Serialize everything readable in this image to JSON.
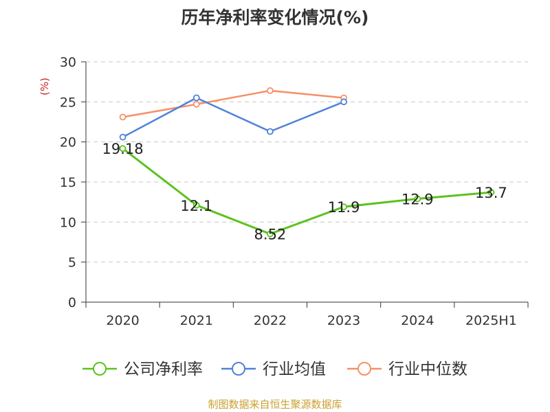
{
  "chart_data": {
    "type": "line",
    "title": "历年净利率变化情况(%)",
    "ylabel": "(%)",
    "categories": [
      "2020",
      "2021",
      "2022",
      "2023",
      "2024",
      "2025H1"
    ],
    "ylim": [
      0,
      30
    ],
    "yticks": [
      0,
      5,
      10,
      15,
      20,
      25,
      30
    ],
    "grid": true,
    "legend_position": "bottom",
    "series": [
      {
        "name": "公司净利率",
        "color": "#5cc21e",
        "values": [
          19.18,
          12.1,
          8.52,
          11.9,
          12.9,
          13.7
        ],
        "labels": [
          "19.18",
          "12.1",
          "8.52",
          "11.9",
          "12.9",
          "13.7"
        ]
      },
      {
        "name": "行业均值",
        "color": "#4f81d9",
        "values": [
          20.6,
          25.5,
          21.3,
          25.0,
          null,
          null
        ]
      },
      {
        "name": "行业中位数",
        "color": "#f59067",
        "values": [
          23.1,
          24.7,
          26.4,
          25.5,
          null,
          null
        ]
      }
    ]
  },
  "footer": {
    "source": "制图数据来自恒生聚源数据库"
  }
}
